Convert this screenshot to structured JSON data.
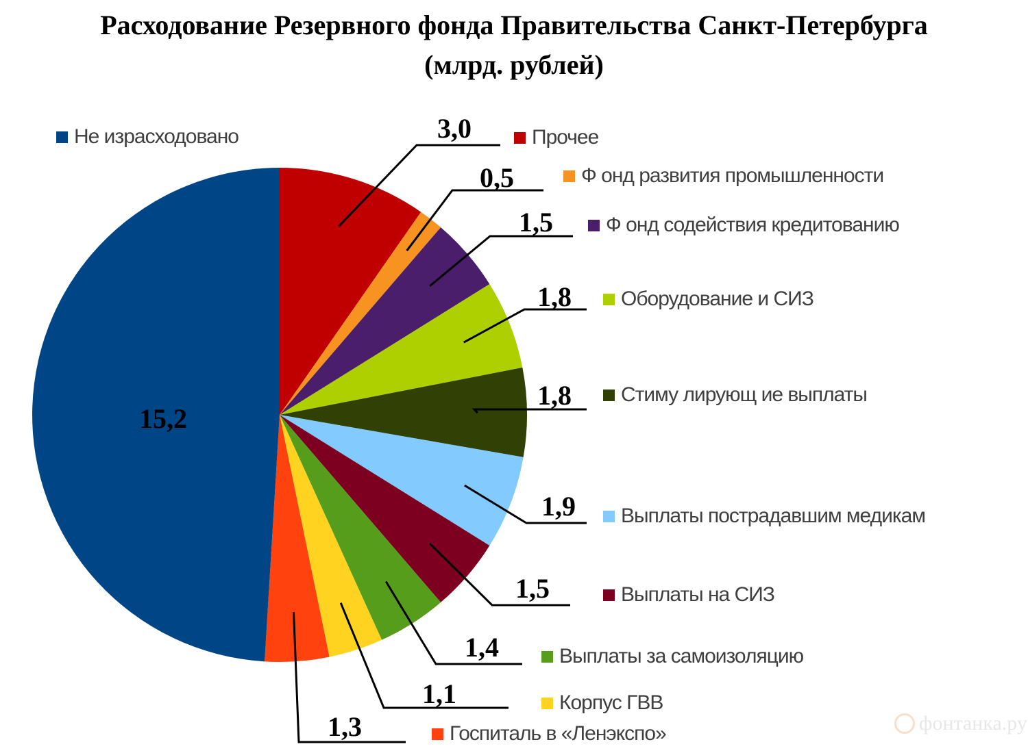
{
  "title": {
    "line1": "Расходование Резервного фонда Правительства Санкт-Петербурга",
    "line2": "(млрд. рублей)"
  },
  "chart_data": {
    "type": "pie",
    "title": "Расходование Резервного фонда Правительства Санкт-Петербурга (млрд. рублей)",
    "unit": "млрд. рублей",
    "start": "12 o'clock",
    "direction": "clockwise",
    "legend_position": "right",
    "slices": [
      {
        "category": "Прочее",
        "value": 3.0,
        "label": "3,0",
        "color": "#c00000"
      },
      {
        "category": "Фонд развития промышленности",
        "value": 0.5,
        "label": "0,5",
        "color": "#f79321"
      },
      {
        "category": "Фонд содействия кредитованию",
        "value": 1.5,
        "label": "1,5",
        "color": "#4b1e6c"
      },
      {
        "category": "Оборудование и СИЗ",
        "value": 1.8,
        "label": "1,8",
        "color": "#aecf00"
      },
      {
        "category": "Стимулирующие выплаты",
        "value": 1.8,
        "label": "1,8",
        "color": "#314004"
      },
      {
        "category": "Выплаты пострадавшим медикам",
        "value": 1.9,
        "label": "1,9",
        "color": "#83caff"
      },
      {
        "category": "Выплаты на СИЗ",
        "value": 1.5,
        "label": "1,5",
        "color": "#7e0021"
      },
      {
        "category": "Выплаты за самоизоляцию",
        "value": 1.4,
        "label": "1,4",
        "color": "#579d1c"
      },
      {
        "category": "Корпус ГВВ",
        "value": 1.1,
        "label": "1,1",
        "color": "#ffd320"
      },
      {
        "category": "Госпиталь в «Ленэкспо»",
        "value": 1.3,
        "label": "1,3",
        "color": "#ff420e"
      },
      {
        "category": "Не израсходовано",
        "value": 15.2,
        "label": "15,2",
        "color": "#004586"
      }
    ],
    "legend_labels": {
      "Не израсходовано": "Не израсходовано",
      "Прочее": "Прочее",
      "Фонд развития промышленности": "Ф онд развития промышленности",
      "Фонд содействия кредитованию": "Ф онд содействия кредитованию",
      "Оборудование и СИЗ": "Оборудование и СИЗ",
      "Стимулирующие выплаты": "Стиму лирующ ие выплаты",
      "Выплаты пострадавшим медикам": "Выплаты пострадавшим медикам",
      "Выплаты на СИЗ": "Выплаты на СИЗ",
      "Выплаты за самоизоляцию": "Выплаты за самоизоляцию",
      "Корпус ГВВ": "Корпус ГВВ",
      "Госпиталь в «Ленэкспо»": "Госпиталь в «Ленэкспо»"
    }
  },
  "watermark": {
    "text": "фонтанка.ру"
  }
}
